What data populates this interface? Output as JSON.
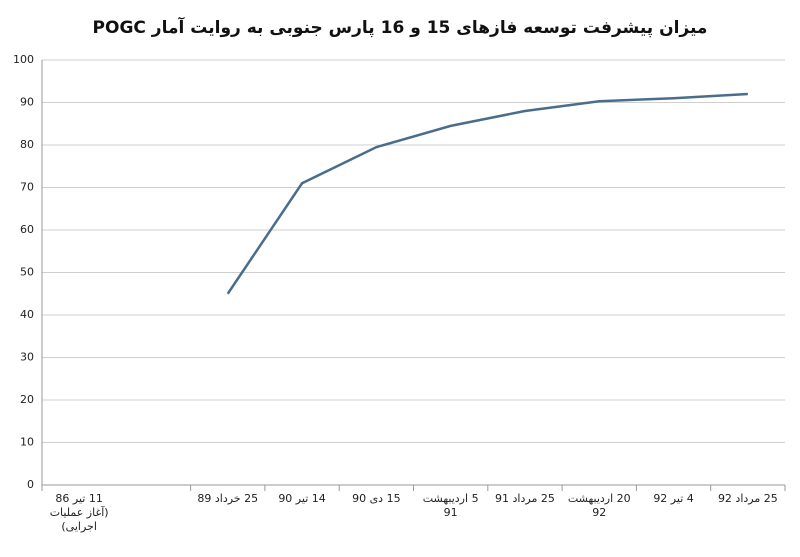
{
  "chart_data": {
    "type": "line",
    "title": "میزان پیشرفت توسعه فازهای 15 و 16 پارس جنوبی به روایت آمار POGC",
    "categories": [
      "11 تیر 86 (آغاز عملیات اجرایی)",
      null,
      "25 خرداد 89",
      "14 تیر 90",
      "15 دی 90",
      "5 اردیبهشت 91",
      "25 مرداد 91",
      "20 اردیبهشت 92",
      "4 تیر 92",
      "25 مرداد 92"
    ],
    "values": [
      null,
      null,
      45,
      71,
      79.5,
      84.5,
      88,
      90.3,
      91,
      92
    ],
    "color": "#4a6d8c",
    "ylim": [
      0,
      100
    ],
    "yticks": [
      0,
      10,
      20,
      30,
      40,
      50,
      60,
      70,
      80,
      90,
      100
    ],
    "grid": true
  }
}
